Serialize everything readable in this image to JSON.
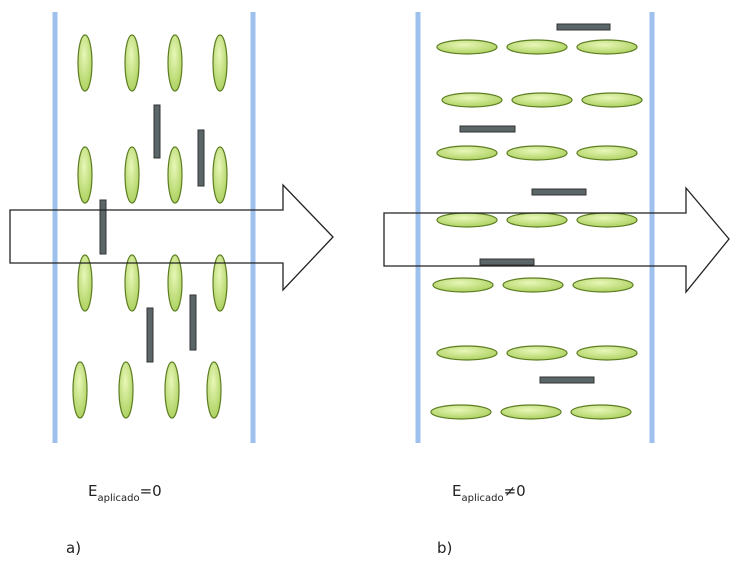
{
  "panels": [
    {
      "symbol": "E",
      "subscript": "aplicado",
      "condition": "=0",
      "caption": "a)"
    },
    {
      "symbol": "E",
      "subscript": "aplicado",
      "condition": "≠0",
      "caption": "b)"
    }
  ]
}
